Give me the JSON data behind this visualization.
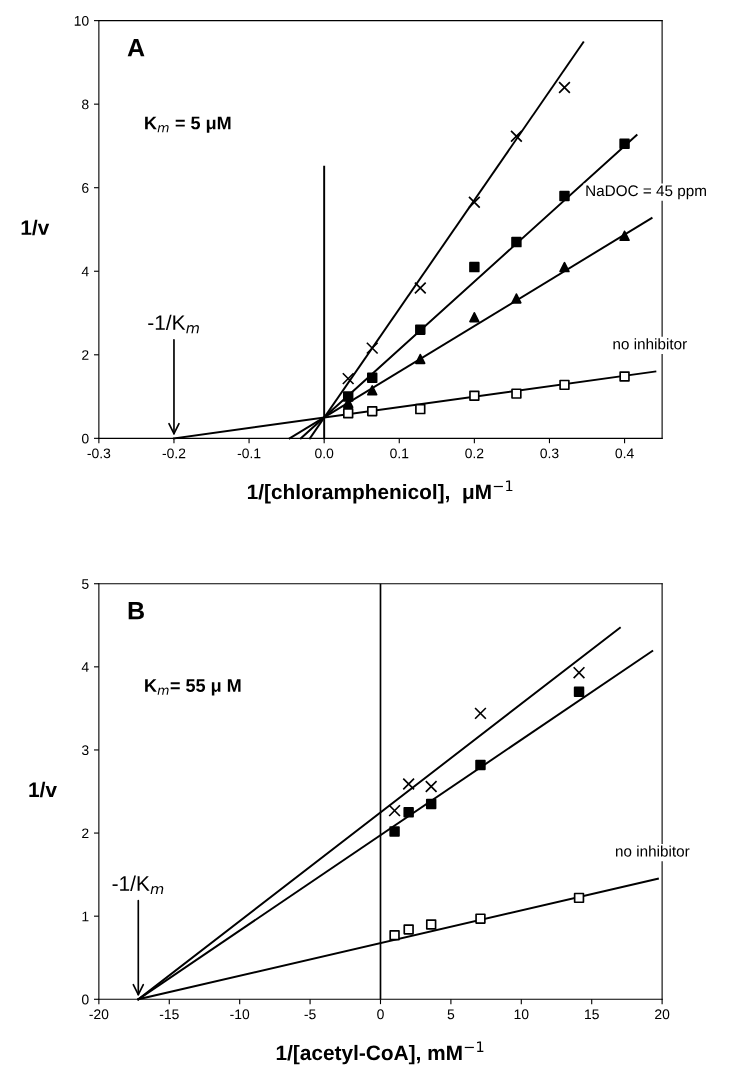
{
  "chart_data": [
    {
      "type": "scatter",
      "title": "A",
      "xlabel": "1/[chloramphenicol],  μM$^{−1}$",
      "ylabel": "1/v",
      "xlim": [
        -0.3,
        0.45
      ],
      "ylim": [
        0,
        10
      ],
      "xticks": [
        {
          "value": -0.3,
          "label": "-0.3"
        },
        {
          "value": -0.2,
          "label": "-0.2"
        },
        {
          "value": -0.1,
          "label": "-0.1"
        },
        {
          "value": 0,
          "label": "0.0"
        },
        {
          "value": 0.1,
          "label": "0.1"
        },
        {
          "value": 0.2,
          "label": "0.2"
        },
        {
          "value": 0.3,
          "label": "0.3"
        },
        {
          "value": 0.4,
          "label": "0.4"
        }
      ],
      "yticks": [
        0,
        2,
        4,
        6,
        8,
        10
      ],
      "grid": false,
      "legend": false,
      "annotations": [
        "K$_{m}$ = 5 μM",
        {
          "text": "-1/K$_{m}$",
          "x": -0.2,
          "y": 0
        }
      ],
      "series": [
        {
          "type": "scatter",
          "marker": "cross",
          "color": "#000000",
          "x": [
            0.032,
            0.064,
            0.128,
            0.2,
            0.256,
            0.32
          ],
          "values": [
            1.43,
            2.16,
            3.6,
            5.65,
            7.23,
            8.4
          ]
        },
        {
          "type": "scatter",
          "marker": "square",
          "color": "#000000",
          "x": [
            0.032,
            0.064,
            0.128,
            0.2,
            0.256,
            0.32,
            0.4
          ],
          "values": [
            1.0,
            1.45,
            2.6,
            4.1,
            4.7,
            5.8,
            7.05
          ]
        },
        {
          "type": "scatter",
          "marker": "triangle",
          "color": "#000000",
          "x": [
            0.032,
            0.064,
            0.128,
            0.2,
            0.256,
            0.32,
            0.4
          ],
          "values": [
            0.85,
            1.15,
            1.9,
            2.9,
            3.35,
            4.1,
            4.85
          ]
        },
        {
          "type": "scatter",
          "marker": "square",
          "color": "#ffffff",
          "x": [
            0.032,
            0.064,
            0.128,
            0.2,
            0.256,
            0.32,
            0.4
          ],
          "values": [
            0.6,
            0.65,
            0.7,
            1.02,
            1.07,
            1.28,
            1.48
          ]
        },
        {
          "type": "line",
          "color": "#000000",
          "x": [
            -0.019,
            0.345
          ],
          "values": [
            0,
            9.48
          ]
        },
        {
          "type": "line",
          "color": "#000000",
          "x": [
            -0.031,
            0.416
          ],
          "values": [
            0,
            7.26
          ]
        },
        {
          "type": "line",
          "name": "NaDOC = 45 ppm",
          "color": "#000000",
          "x": [
            -0.046,
            0.436
          ],
          "values": [
            0,
            5.27
          ]
        },
        {
          "type": "line",
          "name": "no inhibitor",
          "color": "#000000",
          "x": [
            -0.2,
            0.441
          ],
          "values": [
            0,
            1.6
          ]
        },
        {
          "type": "line",
          "color": "#000000",
          "x": [
            0,
            0
          ],
          "values": [
            0,
            6.5
          ]
        }
      ]
    },
    {
      "type": "scatter",
      "title": "B",
      "xlabel": "1/[acetyl-CoA], mM$^{−1}$",
      "ylabel": "1/v",
      "xlim": [
        -20,
        20
      ],
      "ylim": [
        0,
        5
      ],
      "xticks": [
        -20,
        -15,
        -10,
        -5,
        0,
        5,
        10,
        15,
        20
      ],
      "yticks": [
        0,
        1,
        2,
        3,
        4,
        5
      ],
      "grid": false,
      "legend": false,
      "annotations": [
        "K$_{m}$= 55 μ M",
        {
          "text": "-1/K$_{m}$",
          "x": -17.2,
          "y": 0
        }
      ],
      "series": [
        {
          "type": "scatter",
          "marker": "cross",
          "color": "#000000",
          "x": [
            1.0,
            2.0,
            3.6,
            7.1,
            14.1
          ],
          "values": [
            2.27,
            2.59,
            2.56,
            3.44,
            3.93
          ]
        },
        {
          "type": "scatter",
          "marker": "square",
          "color": "#000000",
          "x": [
            1.0,
            2.0,
            3.6,
            7.1,
            14.1
          ],
          "values": [
            2.02,
            2.25,
            2.35,
            2.82,
            3.7
          ]
        },
        {
          "type": "scatter",
          "marker": "square",
          "color": "#ffffff",
          "x": [
            1.0,
            2.0,
            3.6,
            7.1,
            14.1
          ],
          "values": [
            0.77,
            0.84,
            0.9,
            0.97,
            1.22
          ]
        },
        {
          "type": "line",
          "color": "#000000",
          "x": [
            -17.2,
            17.0
          ],
          "values": [
            0,
            4.47
          ]
        },
        {
          "type": "line",
          "color": "#000000",
          "x": [
            -17.2,
            19.3
          ],
          "values": [
            0,
            4.19
          ]
        },
        {
          "type": "line",
          "name": "no inhibitor",
          "color": "#000000",
          "x": [
            -17.2,
            19.7
          ],
          "values": [
            0,
            1.45
          ]
        }
      ],
      "ref_lines": [
        {
          "axis": "x",
          "value": 0,
          "color": "#000000"
        }
      ]
    }
  ]
}
